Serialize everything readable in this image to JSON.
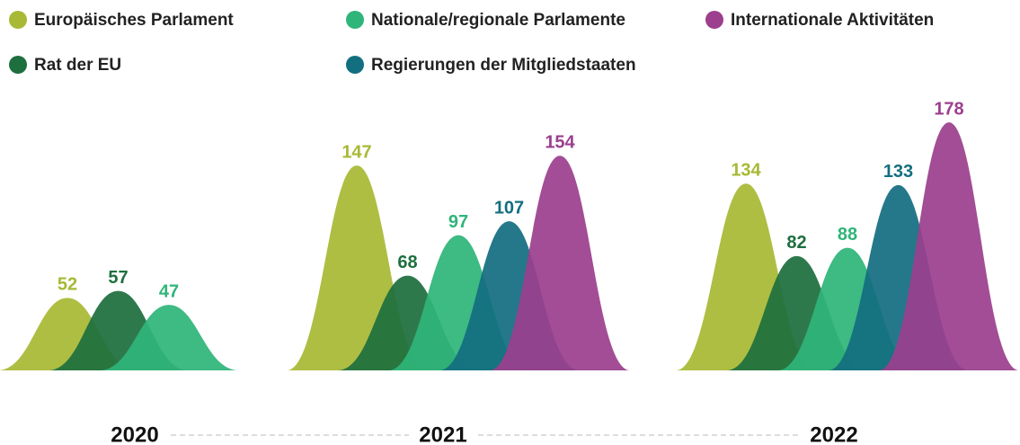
{
  "chart_data": {
    "type": "bar",
    "categories": [
      "2020",
      "2021",
      "2022"
    ],
    "series": [
      {
        "name": "Europäisches Parlament",
        "color": "#a8b935",
        "values": [
          52,
          147,
          134
        ]
      },
      {
        "name": "Rat der EU",
        "color": "#1e6f3e",
        "values": [
          57,
          68,
          82
        ]
      },
      {
        "name": "Nationale/regionale Parlamente",
        "color": "#2fb57a",
        "values": [
          47,
          97,
          88
        ]
      },
      {
        "name": "Regierungen der Mitgliedstaaten",
        "color": "#136e80",
        "values": [
          null,
          107,
          133
        ]
      },
      {
        "name": "Internationale Aktivitäten",
        "color": "#9b3f8e",
        "values": [
          null,
          154,
          178
        ]
      }
    ]
  }
}
